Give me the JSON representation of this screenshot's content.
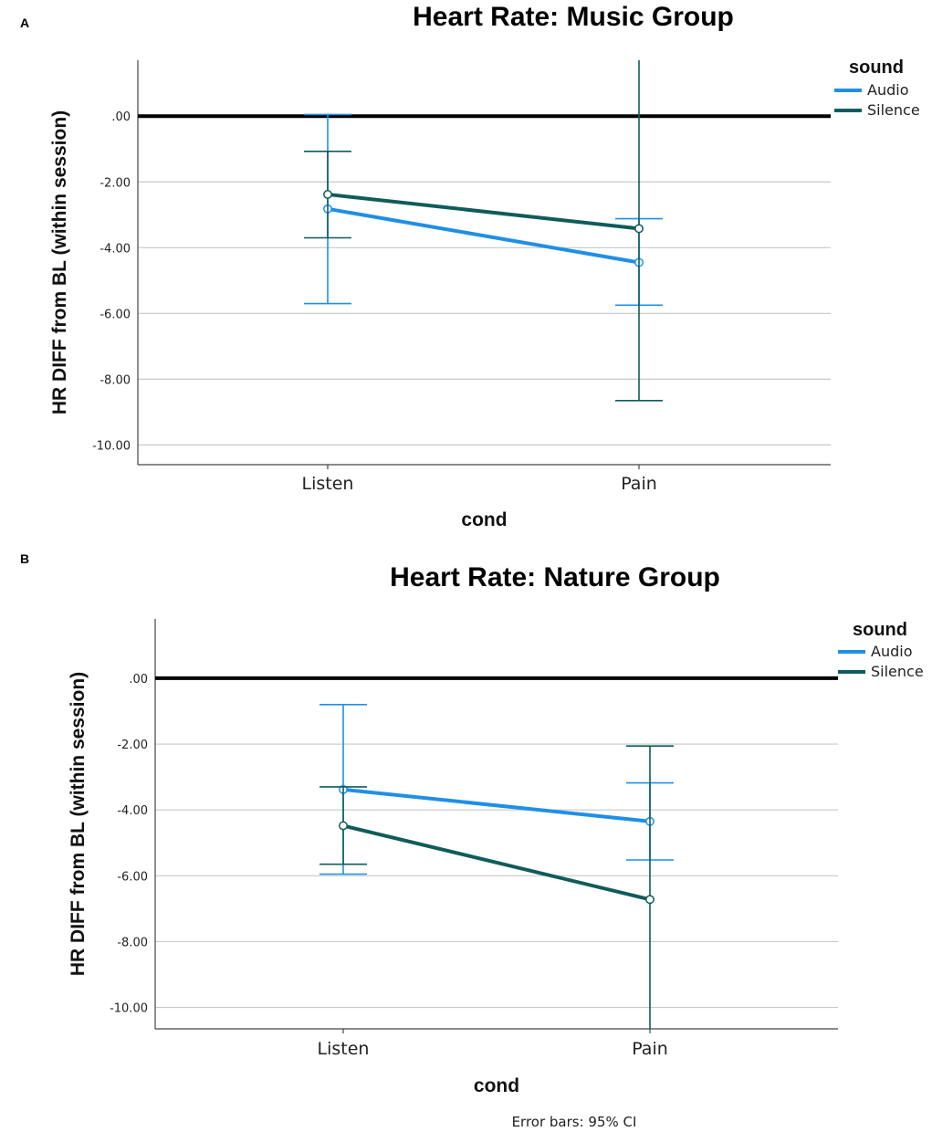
{
  "footnote": "Error bars: 95% CI",
  "colors": {
    "audio": "#1f8fe6",
    "silence": "#0f5c5a",
    "grid": "#c8c8c8",
    "zero": "#000000"
  },
  "chart_data": [
    {
      "type": "line",
      "panel": "A",
      "title": "Heart Rate: Music Group",
      "xlabel": "cond",
      "ylabel": "HR DIFF from BL (within session)",
      "categories": [
        "Listen",
        "Pain"
      ],
      "ylim": [
        -10.6,
        1.7
      ],
      "yticks": [
        0,
        -2,
        -4,
        -6,
        -8,
        -10
      ],
      "ytick_labels": [
        ".00",
        "-2.00",
        "-4.00",
        "-6.00",
        "-8.00",
        "-10.00"
      ],
      "reference_line": 0,
      "grid": true,
      "legend": {
        "title": "sound",
        "position": "top-right"
      },
      "series": [
        {
          "name": "Audio",
          "color": "#1f8fe6",
          "values": [
            -2.82,
            -4.45
          ],
          "ci_low": [
            -5.7,
            -5.75
          ],
          "ci_high": [
            0.05,
            -3.12
          ]
        },
        {
          "name": "Silence",
          "color": "#0f5c5a",
          "values": [
            -2.38,
            -3.42
          ],
          "ci_low": [
            -3.7,
            -8.65
          ],
          "ci_high": [
            -1.07,
            1.7
          ]
        }
      ]
    },
    {
      "type": "line",
      "panel": "B",
      "title": "Heart Rate: Nature Group",
      "xlabel": "cond",
      "ylabel": "HR DIFF from BL (within session)",
      "categories": [
        "Listen",
        "Pain"
      ],
      "ylim": [
        -10.65,
        1.8
      ],
      "yticks": [
        0,
        -2,
        -4,
        -6,
        -8,
        -10
      ],
      "ytick_labels": [
        ".00",
        "-2.00",
        "-4.00",
        "-6.00",
        "-8.00",
        "-10.00"
      ],
      "reference_line": 0,
      "grid": true,
      "legend": {
        "title": "sound",
        "position": "top-right"
      },
      "series": [
        {
          "name": "Audio",
          "color": "#1f8fe6",
          "values": [
            -3.38,
            -4.35
          ],
          "ci_low": [
            -5.95,
            -5.52
          ],
          "ci_high": [
            -0.8,
            -3.18
          ]
        },
        {
          "name": "Silence",
          "color": "#0f5c5a",
          "values": [
            -4.48,
            -6.72
          ],
          "ci_low": [
            -5.65,
            -10.65
          ],
          "ci_high": [
            -3.3,
            -2.06
          ]
        }
      ]
    }
  ]
}
